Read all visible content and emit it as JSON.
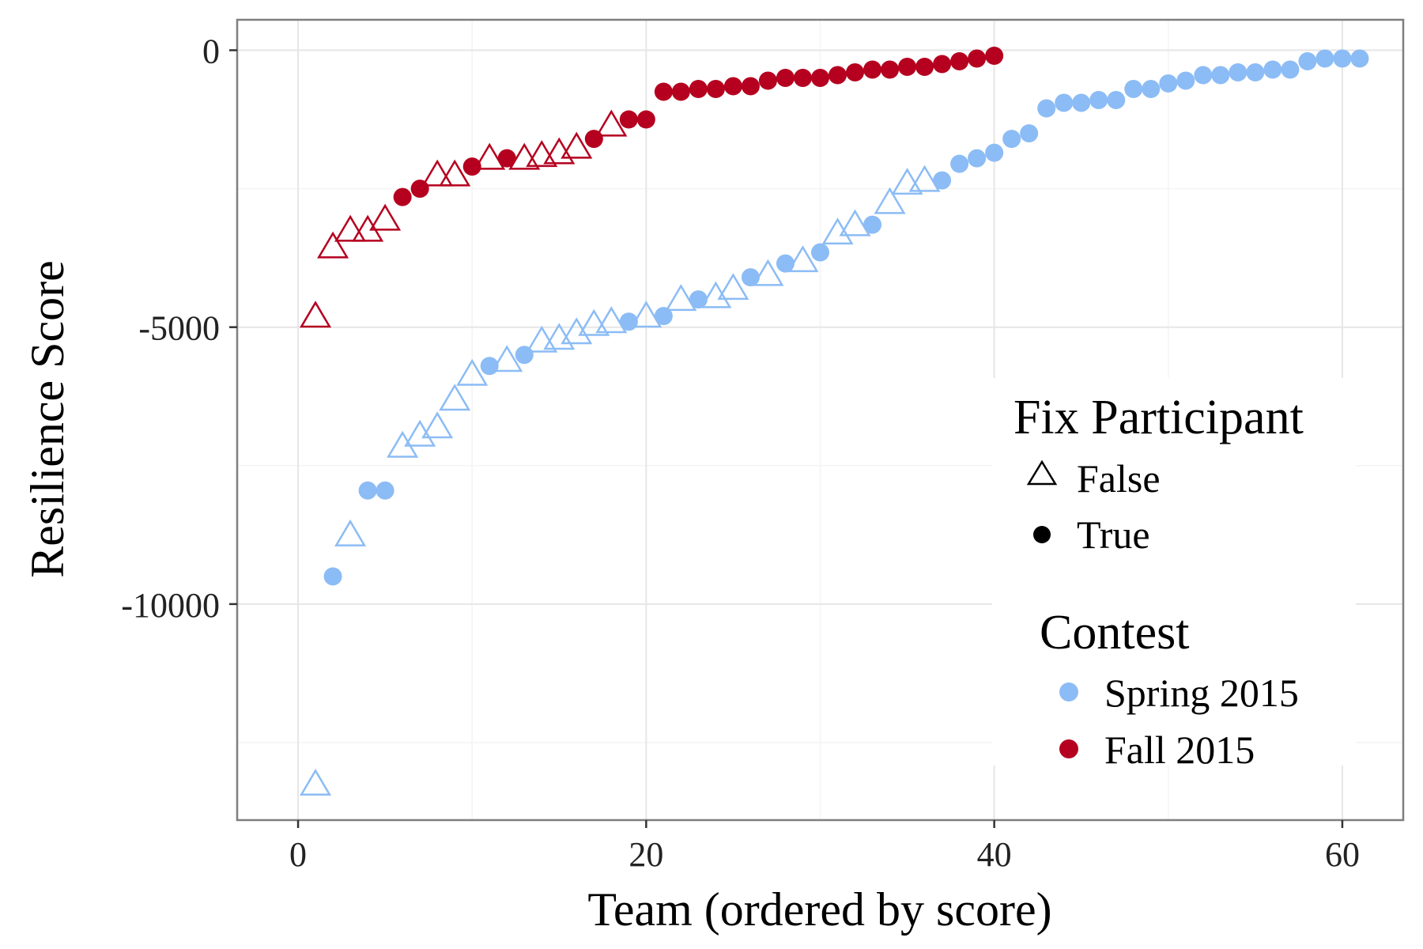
{
  "chart_data": {
    "type": "scatter",
    "xlabel": "Team (ordered by score)",
    "ylabel": "Resilience Score",
    "xlim": [
      -3.5,
      63.5
    ],
    "ylim": [
      -13900,
      550
    ],
    "x_ticks": [
      0,
      20,
      40,
      60
    ],
    "y_ticks": [
      0,
      -5000,
      -10000
    ],
    "x_tick_labels": [
      "0",
      "20",
      "40",
      "60"
    ],
    "y_tick_labels": [
      "0",
      "-5000",
      "-10000"
    ],
    "x_minor_ticks": [
      10,
      30,
      50
    ],
    "y_minor_ticks": [
      -2500,
      -7500,
      -12500
    ],
    "grid": true,
    "legend_position": "right-inside",
    "legend": {
      "shape_title": "Fix Participant",
      "shape_entries": [
        {
          "label": "False",
          "marker": "triangle-open"
        },
        {
          "label": "True",
          "marker": "circle-filled"
        }
      ],
      "color_title": "Contest",
      "color_entries": [
        {
          "label": "Spring 2015",
          "color": "#8cbcf5"
        },
        {
          "label": "Fall 2015",
          "color": "#b5001f"
        }
      ]
    },
    "series": [
      {
        "name": "Spring 2015",
        "color": "#8cbcf5",
        "x": [
          1,
          2,
          3,
          4,
          5,
          6,
          7,
          8,
          9,
          10,
          11,
          12,
          13,
          14,
          15,
          16,
          17,
          18,
          19,
          20,
          21,
          22,
          23,
          24,
          25,
          26,
          27,
          28,
          29,
          30,
          31,
          32,
          33,
          34,
          35,
          36,
          37,
          38,
          39,
          40,
          41,
          42,
          43,
          44,
          45,
          46,
          47,
          48,
          49,
          50,
          51,
          52,
          53,
          54,
          55,
          56,
          57,
          58,
          59,
          60,
          61
        ],
        "y": [
          -13250,
          -9500,
          -8750,
          -7950,
          -7950,
          -7150,
          -6950,
          -6800,
          -6300,
          -5850,
          -5700,
          -5600,
          -5500,
          -5250,
          -5200,
          -5100,
          -4950,
          -4900,
          -4900,
          -4800,
          -4800,
          -4500,
          -4500,
          -4450,
          -4300,
          -4100,
          -4050,
          -3850,
          -3800,
          -3650,
          -3300,
          -3150,
          -3150,
          -2750,
          -2400,
          -2350,
          -2350,
          -2050,
          -1950,
          -1850,
          -1600,
          -1500,
          -1050,
          -950,
          -950,
          -900,
          -900,
          -700,
          -700,
          -600,
          -550,
          -450,
          -450,
          -400,
          -400,
          -350,
          -350,
          -200,
          -150,
          -150,
          -150
        ],
        "fix_participant": [
          false,
          true,
          false,
          true,
          true,
          false,
          false,
          false,
          false,
          false,
          true,
          false,
          true,
          false,
          false,
          false,
          false,
          false,
          true,
          false,
          true,
          false,
          true,
          false,
          false,
          true,
          false,
          true,
          false,
          true,
          false,
          false,
          true,
          false,
          false,
          false,
          true,
          true,
          true,
          true,
          true,
          true,
          true,
          true,
          true,
          true,
          true,
          true,
          true,
          true,
          true,
          true,
          true,
          true,
          true,
          true,
          true,
          true,
          true,
          true,
          true
        ]
      },
      {
        "name": "Fall 2015",
        "color": "#b5001f",
        "x": [
          1,
          2,
          3,
          4,
          5,
          6,
          7,
          8,
          9,
          10,
          11,
          12,
          13,
          14,
          15,
          16,
          17,
          18,
          19,
          20,
          21,
          22,
          23,
          24,
          25,
          26,
          27,
          28,
          29,
          30,
          31,
          32,
          33,
          34,
          35,
          36,
          37,
          38,
          39,
          40
        ],
        "y": [
          -4800,
          -3550,
          -3250,
          -3250,
          -3050,
          -2650,
          -2500,
          -2250,
          -2250,
          -2100,
          -1950,
          -1950,
          -1950,
          -1900,
          -1850,
          -1750,
          -1600,
          -1350,
          -1250,
          -1250,
          -750,
          -750,
          -700,
          -700,
          -650,
          -650,
          -550,
          -500,
          -500,
          -500,
          -450,
          -400,
          -350,
          -350,
          -300,
          -300,
          -250,
          -200,
          -150,
          -100
        ],
        "fix_participant": [
          false,
          false,
          false,
          false,
          false,
          true,
          true,
          false,
          false,
          true,
          false,
          true,
          false,
          false,
          false,
          false,
          true,
          false,
          true,
          true,
          true,
          true,
          true,
          true,
          true,
          true,
          true,
          true,
          true,
          true,
          true,
          true,
          true,
          true,
          true,
          true,
          true,
          true,
          true,
          true
        ]
      }
    ]
  }
}
